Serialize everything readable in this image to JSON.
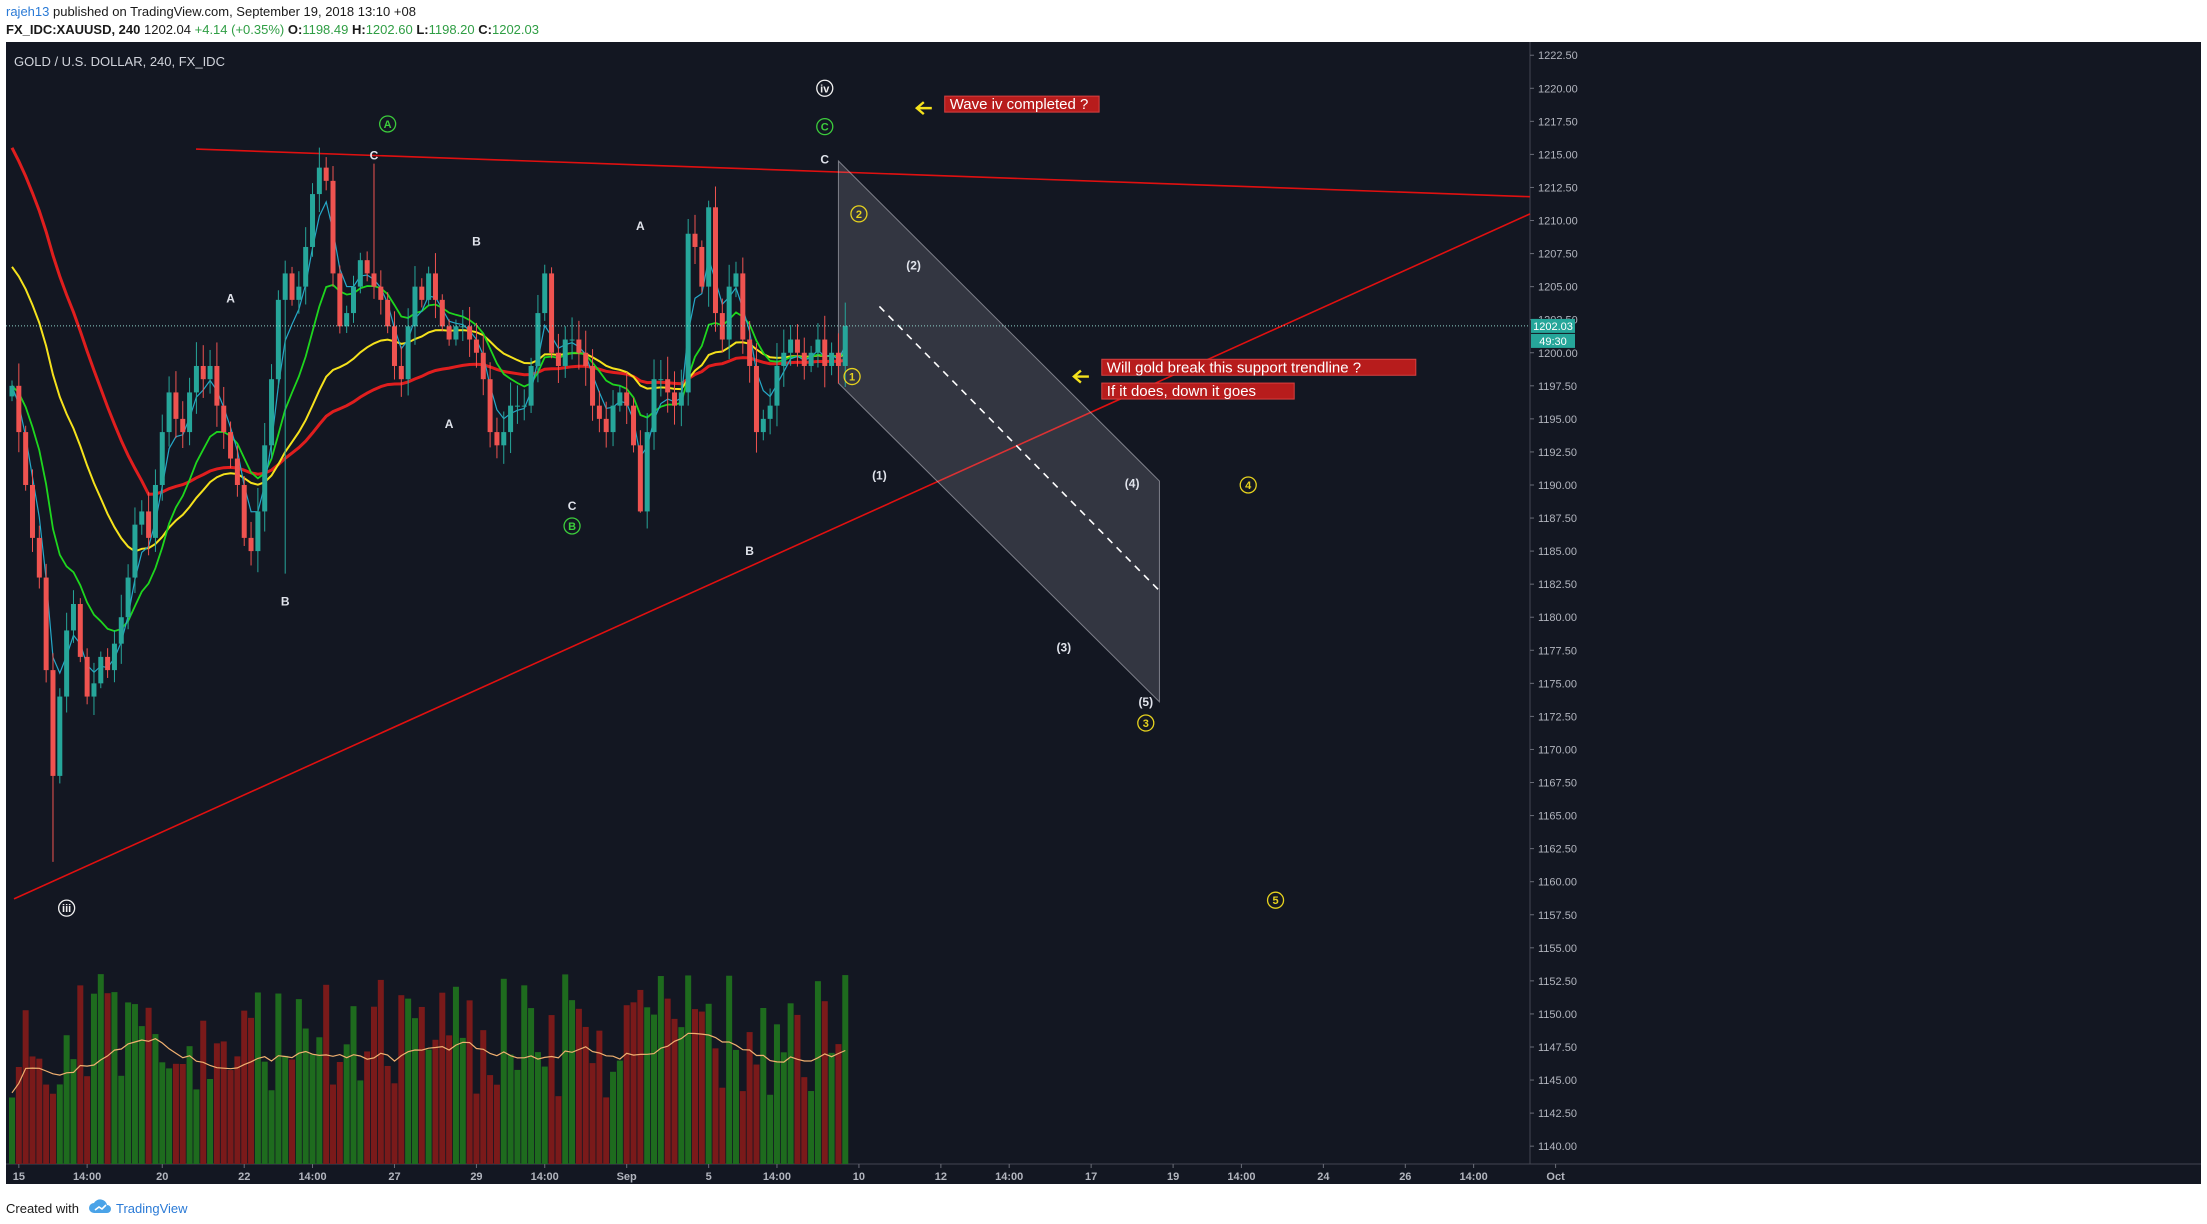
{
  "header": {
    "username": "rajeh13",
    "published_text": " published on TradingView.com, September 19, 2018 13:10 +08",
    "symbol": "FX_IDC:XAUUSD, 240",
    "last": "1202.04",
    "change": "+4.14 (+0.35%)",
    "open_label": "O:",
    "open": "1198.49",
    "high_label": "H:",
    "high": "1202.60",
    "low_label": "L:",
    "low": "1198.20",
    "close_label": "C:",
    "close": "1202.03"
  },
  "footer": {
    "created_with": "Created with",
    "brand": "TradingView",
    "logo_icon": "tradingview-cloud-icon"
  },
  "chart_data": {
    "type": "candlestick",
    "title": "GOLD / U.S. DOLLAR, 240, FX_IDC",
    "ylim": [
      1138.5,
      1223.5
    ],
    "y_ticks": [
      "1222.50",
      "1220.00",
      "1217.50",
      "1215.00",
      "1212.50",
      "1210.00",
      "1207.50",
      "1205.00",
      "1202.50",
      "1200.00",
      "1197.50",
      "1195.00",
      "1192.50",
      "1190.00",
      "1187.50",
      "1185.00",
      "1182.50",
      "1180.00",
      "1177.50",
      "1175.00",
      "1172.50",
      "1170.00",
      "1167.50",
      "1165.00",
      "1162.50",
      "1160.00",
      "1157.50",
      "1155.00",
      "1152.50",
      "1150.00",
      "1147.50",
      "1145.00",
      "1142.50",
      "1140.00"
    ],
    "x_ticks": [
      {
        "label": "15",
        "i": 1
      },
      {
        "label": "14:00",
        "i": 11
      },
      {
        "label": "20",
        "i": 22
      },
      {
        "label": "22",
        "i": 34
      },
      {
        "label": "14:00",
        "i": 44
      },
      {
        "label": "27",
        "i": 56
      },
      {
        "label": "29",
        "i": 68
      },
      {
        "label": "14:00",
        "i": 78
      },
      {
        "label": "Sep",
        "i": 90
      },
      {
        "label": "5",
        "i": 102
      },
      {
        "label": "14:00",
        "i": 112
      },
      {
        "label": "10",
        "i": 124
      },
      {
        "label": "12",
        "i": 136
      },
      {
        "label": "14:00",
        "i": 146
      },
      {
        "label": "17",
        "i": 158
      },
      {
        "label": "19",
        "i": 170
      },
      {
        "label": "14:00",
        "i": 180
      },
      {
        "label": "24",
        "i": 192
      },
      {
        "label": "26",
        "i": 204
      },
      {
        "label": "14:00",
        "i": 214
      },
      {
        "label": "Oct",
        "i": 226
      }
    ],
    "price_label": "1202.03",
    "countdown_label": "49:30",
    "closes": [
      1197.5,
      1194,
      1190,
      1186,
      1183,
      1176,
      1168,
      1174,
      1179,
      1181,
      1177,
      1174,
      1175,
      1177,
      1176,
      1178,
      1180,
      1183,
      1187,
      1188,
      1186,
      1190,
      1194,
      1197,
      1195,
      1194,
      1197,
      1199,
      1198,
      1199,
      1196,
      1194,
      1192,
      1190,
      1186,
      1185,
      1188,
      1193,
      1198,
      1204,
      1206,
      1204,
      1205,
      1208,
      1212,
      1214,
      1213,
      1206,
      1202,
      1203,
      1205,
      1207,
      1206,
      1205,
      1204,
      1202,
      1199,
      1198,
      1202,
      1205,
      1204,
      1206,
      1204,
      1202,
      1201,
      1202,
      1202,
      1201,
      1200,
      1198,
      1194,
      1193,
      1194,
      1196,
      1196,
      1196,
      1199,
      1203,
      1206,
      1200,
      1199,
      1201,
      1201,
      1200,
      1199,
      1196,
      1195,
      1194,
      1196,
      1197,
      1196,
      1193,
      1188,
      1194,
      1198,
      1198,
      1197,
      1196,
      1197,
      1209,
      1208,
      1205,
      1211,
      1203,
      1201,
      1205,
      1206,
      1201,
      1199,
      1194,
      1195,
      1196,
      1199,
      1200,
      1201,
      1200,
      1199,
      1200,
      1201,
      1199,
      1200,
      1199,
      1202.03
    ],
    "annotations": [
      {
        "text": "Wave iv completed ?",
        "i": 137,
        "y": 1218.5,
        "style": "box"
      },
      {
        "text": "Will gold break this support trendline ?",
        "i": 160,
        "y": 1198.6,
        "style": "box"
      },
      {
        "text": "If it does, down it goes",
        "i": 160,
        "y": 1196.8,
        "style": "box"
      },
      {
        "text": "A",
        "i": 32,
        "y": 1203.8
      },
      {
        "text": "B",
        "i": 40,
        "y": 1180.9
      },
      {
        "text": "C",
        "i": 53,
        "y": 1214.6
      },
      {
        "text": "B",
        "i": 68,
        "y": 1208.1
      },
      {
        "text": "A",
        "i": 64,
        "y": 1194.3
      },
      {
        "text": "C",
        "i": 82,
        "y": 1188.1
      },
      {
        "text": "A",
        "i": 92,
        "y": 1209.3
      },
      {
        "text": "B",
        "i": 108,
        "y": 1184.7
      },
      {
        "text": "C",
        "i": 119,
        "y": 1214.3
      },
      {
        "text": "(1)",
        "i": 127,
        "y": 1190.4
      },
      {
        "text": "(2)",
        "i": 132,
        "y": 1206.3
      },
      {
        "text": "(3)",
        "i": 154,
        "y": 1177.4
      },
      {
        "text": "(4)",
        "i": 164,
        "y": 1189.8
      },
      {
        "text": "(5)",
        "i": 166,
        "y": 1173.3
      }
    ],
    "circled_labels": [
      {
        "text": "A",
        "i": 55,
        "y": 1217.3,
        "color": "green"
      },
      {
        "text": "B",
        "i": 82,
        "y": 1186.9,
        "color": "green"
      },
      {
        "text": "C",
        "i": 119,
        "y": 1217.1,
        "color": "green"
      },
      {
        "text": "iv",
        "i": 119,
        "y": 1220.0,
        "color": "white"
      },
      {
        "text": "iii",
        "i": 8,
        "y": 1158.0,
        "color": "white"
      },
      {
        "text": "1",
        "i": 123,
        "y": 1198.2,
        "color": "yellow"
      },
      {
        "text": "2",
        "i": 124,
        "y": 1210.5,
        "color": "yellow"
      },
      {
        "text": "3",
        "i": 166,
        "y": 1172.0,
        "color": "yellow"
      },
      {
        "text": "4",
        "i": 181,
        "y": 1190.0,
        "color": "yellow"
      },
      {
        "text": "5",
        "i": 185,
        "y": 1158.6,
        "color": "yellow"
      }
    ],
    "colors": {
      "up": "#26a69a",
      "down": "#ef5350",
      "ma_red": "#e01e1e",
      "ma_yellow": "#f5e21c",
      "ma_green": "#1ed61e",
      "ma_cyan": "#25a8c8",
      "trend": "#e01010"
    }
  }
}
